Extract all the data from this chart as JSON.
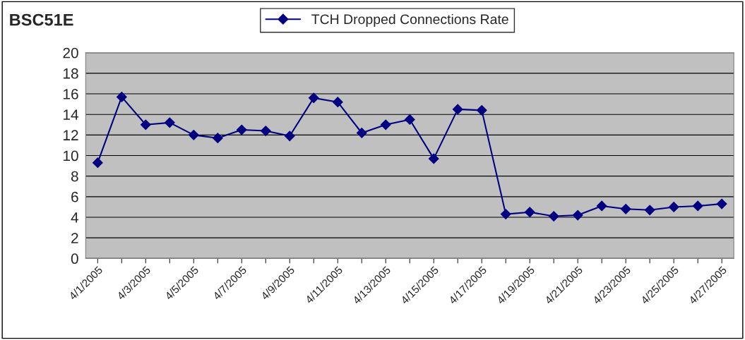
{
  "chart_data": {
    "type": "line",
    "title": "BSC51E",
    "categories": [
      "4/1/2005",
      null,
      "4/3/2005",
      null,
      "4/5/2005",
      null,
      "4/7/2005",
      null,
      "4/9/2005",
      null,
      "4/11/2005",
      null,
      "4/13/2005",
      null,
      "4/15/2005",
      null,
      "4/17/2005",
      null,
      "4/19/2005",
      null,
      "4/21/2005",
      null,
      "4/23/2005",
      null,
      "4/25/2005",
      null,
      "4/27/2005"
    ],
    "series": [
      {
        "name": "TCH Dropped Connections Rate",
        "color": "#000080",
        "values": [
          9.3,
          15.7,
          13.0,
          13.2,
          12.0,
          11.7,
          12.5,
          12.4,
          11.9,
          15.6,
          15.2,
          12.2,
          13.0,
          13.5,
          9.7,
          14.5,
          14.4,
          4.3,
          4.5,
          4.1,
          4.2,
          5.1,
          4.8,
          4.7,
          5.0,
          5.1,
          5.3
        ]
      }
    ],
    "ylim": [
      0,
      20
    ],
    "yticks": [
      0,
      2,
      4,
      6,
      8,
      10,
      12,
      14,
      16,
      18,
      20
    ],
    "grid": "y",
    "legend": "top",
    "marker": "diamond",
    "line_style": "solid"
  }
}
